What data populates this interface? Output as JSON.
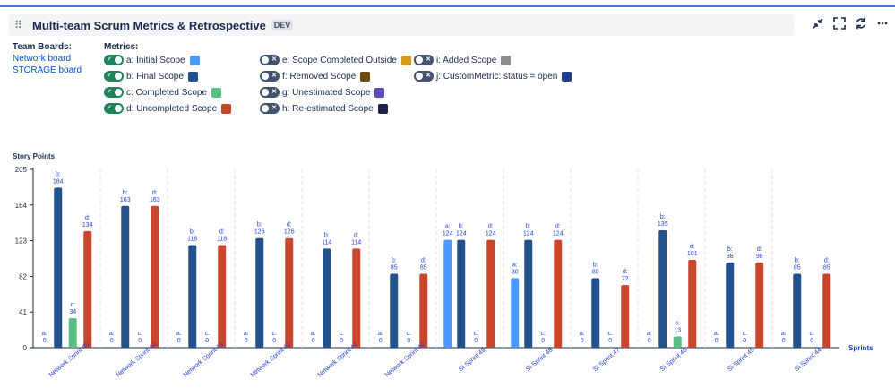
{
  "header": {
    "title": "Multi-team Scrum Metrics & Retrospective",
    "badge": "DEV",
    "icons": [
      "collapse-icon",
      "fullscreen-icon",
      "refresh-icon",
      "more-icon"
    ]
  },
  "team_boards": {
    "label": "Team Boards:",
    "links": [
      "Network board",
      "STORAGE board"
    ]
  },
  "metrics": {
    "label": "Metrics:",
    "items": [
      {
        "label": "a: Initial Scope",
        "on": true,
        "color": "#4c9aff"
      },
      {
        "label": "b: Final Scope",
        "on": true,
        "color": "#23518c"
      },
      {
        "label": "c: Completed Scope",
        "on": true,
        "color": "#57c085"
      },
      {
        "label": "d: Uncompleted Scope",
        "on": true,
        "color": "#c9462c"
      },
      {
        "label": "e: Scope Completed Outside",
        "on": false,
        "color": "#d49a1a"
      },
      {
        "label": "f: Removed Scope",
        "on": false,
        "color": "#6b4a0f"
      },
      {
        "label": "g: Unestimated Scope",
        "on": false,
        "color": "#5e4db2"
      },
      {
        "label": "h: Re-estimated Scope",
        "on": false,
        "color": "#1f1f4d"
      },
      {
        "label": "i: Added Scope",
        "on": false,
        "color": "#8c8c8c"
      },
      {
        "label": "j: CustomMetric: status = open",
        "on": false,
        "color": "#1f3f8c"
      }
    ]
  },
  "chart_data": {
    "type": "bar",
    "ylabel": "Story Points",
    "xlabel": "Sprints",
    "ylim": [
      0,
      205
    ],
    "yticks": [
      0,
      41,
      82,
      123,
      164,
      205
    ],
    "categories": [
      "Network Sprint 45",
      "Network Sprint 44",
      "Network Sprint 43",
      "Network Sprint 42",
      "Network Sprint 41",
      "Network Sprint 40",
      "SI Sprint 49",
      "SI Sprint 48",
      "SI Sprint 47",
      "SI Sprint 46",
      "SI Sprint 45",
      "SI Sprint 44"
    ],
    "series": [
      {
        "key": "a",
        "name": "Initial Scope",
        "color": "#4c9aff",
        "values": [
          0,
          0,
          0,
          0,
          0,
          0,
          124,
          80,
          0,
          0,
          0,
          0
        ]
      },
      {
        "key": "b",
        "name": "Final Scope",
        "color": "#23518c",
        "values": [
          184,
          163,
          118,
          126,
          114,
          85,
          124,
          124,
          80,
          135,
          98,
          85
        ]
      },
      {
        "key": "c",
        "name": "Completed Scope",
        "color": "#57c085",
        "values": [
          34,
          0,
          0,
          0,
          0,
          0,
          0,
          0,
          0,
          13,
          0,
          0
        ]
      },
      {
        "key": "d",
        "name": "Uncompleted Scope",
        "color": "#c9462c",
        "values": [
          134,
          163,
          118,
          126,
          114,
          85,
          124,
          124,
          72,
          101,
          98,
          85
        ]
      }
    ]
  }
}
